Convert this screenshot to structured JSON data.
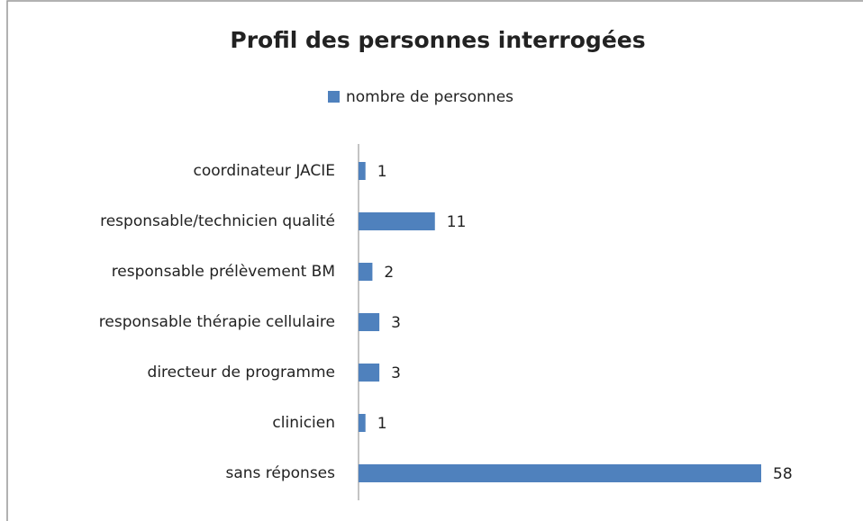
{
  "chart_data": {
    "type": "bar",
    "orientation": "horizontal",
    "title": "Profil des personnes interrogées",
    "categories": [
      "coordinateur JACIE",
      "responsable/technicien qualité",
      "responsable prélèvement BM",
      "responsable thérapie cellulaire",
      "directeur de programme",
      "clinicien",
      "sans réponses"
    ],
    "series": [
      {
        "name": "nombre de personnes",
        "color": "#4f81bd",
        "values": [
          1,
          11,
          2,
          3,
          3,
          1,
          58
        ]
      }
    ],
    "legend": "top"
  }
}
